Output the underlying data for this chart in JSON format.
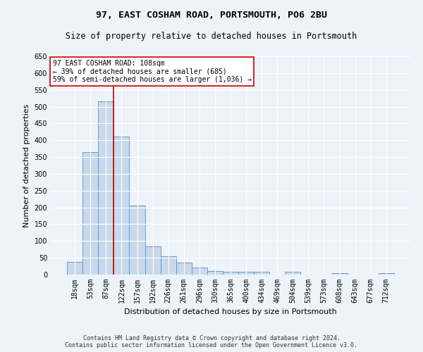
{
  "title": "97, EAST COSHAM ROAD, PORTSMOUTH, PO6 2BU",
  "subtitle": "Size of property relative to detached houses in Portsmouth",
  "xlabel": "Distribution of detached houses by size in Portsmouth",
  "ylabel": "Number of detached properties",
  "bar_labels": [
    "18sqm",
    "53sqm",
    "87sqm",
    "122sqm",
    "157sqm",
    "192sqm",
    "226sqm",
    "261sqm",
    "296sqm",
    "330sqm",
    "365sqm",
    "400sqm",
    "434sqm",
    "469sqm",
    "504sqm",
    "539sqm",
    "573sqm",
    "608sqm",
    "643sqm",
    "677sqm",
    "712sqm"
  ],
  "bar_values": [
    38,
    365,
    515,
    410,
    205,
    84,
    55,
    35,
    22,
    11,
    8,
    8,
    8,
    0,
    8,
    0,
    0,
    5,
    0,
    0,
    5
  ],
  "bar_color": "#c8d9ec",
  "bar_edgecolor": "#5a8fc0",
  "vline_color": "#cc0000",
  "annotation_text": "97 EAST COSHAM ROAD: 108sqm\n← 39% of detached houses are smaller (685)\n59% of semi-detached houses are larger (1,036) →",
  "annotation_box_color": "#ffffff",
  "annotation_border_color": "#cc0000",
  "ylim": [
    0,
    650
  ],
  "yticks": [
    0,
    50,
    100,
    150,
    200,
    250,
    300,
    350,
    400,
    450,
    500,
    550,
    600,
    650
  ],
  "footer_line1": "Contains HM Land Registry data © Crown copyright and database right 2024.",
  "footer_line2": "Contains public sector information licensed under the Open Government Licence v3.0.",
  "bg_color": "#eef2f9",
  "plot_bg_color": "#eef2f9",
  "title_fontsize": 9.5,
  "subtitle_fontsize": 8.5,
  "xlabel_fontsize": 8,
  "ylabel_fontsize": 8,
  "tick_fontsize": 7,
  "annotation_fontsize": 7,
  "footer_fontsize": 6
}
